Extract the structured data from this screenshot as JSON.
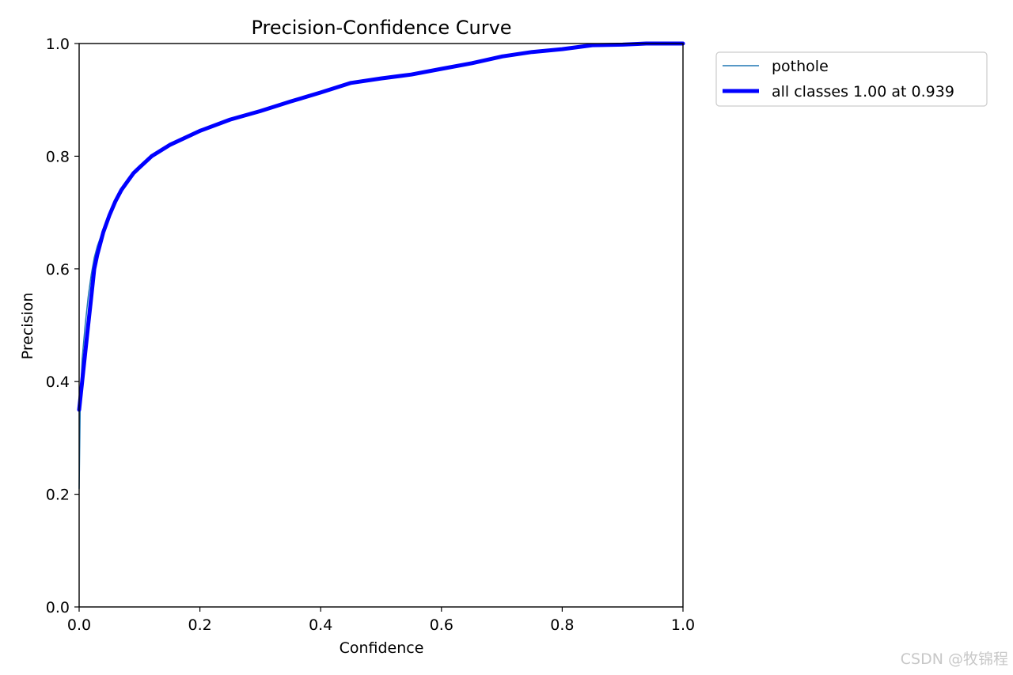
{
  "chart_data": {
    "type": "line",
    "title": "Precision-Confidence Curve",
    "xlabel": "Confidence",
    "ylabel": "Precision",
    "xlim": [
      0,
      1
    ],
    "ylim": [
      0,
      1
    ],
    "xticks": [
      "0.0",
      "0.2",
      "0.4",
      "0.6",
      "0.8",
      "1.0"
    ],
    "yticks": [
      "0.0",
      "0.2",
      "0.4",
      "0.6",
      "0.8",
      "1.0"
    ],
    "grid": false,
    "legend_position": "outside-top-right",
    "series": [
      {
        "name": "pothole",
        "color": "#1f77b4",
        "line": "thin",
        "x": [
          0.0,
          0.002,
          0.005,
          0.01,
          0.015,
          0.02,
          0.025,
          0.03,
          0.04,
          0.05,
          0.06,
          0.07,
          0.08,
          0.09,
          0.1,
          0.12,
          0.15,
          0.2,
          0.25,
          0.3,
          0.35,
          0.4,
          0.45,
          0.5,
          0.55,
          0.6,
          0.65,
          0.7,
          0.75,
          0.8,
          0.85,
          0.9,
          0.95,
          1.0
        ],
        "y": [
          0.21,
          0.37,
          0.44,
          0.5,
          0.55,
          0.59,
          0.62,
          0.64,
          0.67,
          0.7,
          0.72,
          0.74,
          0.755,
          0.77,
          0.78,
          0.8,
          0.82,
          0.845,
          0.865,
          0.88,
          0.897,
          0.913,
          0.93,
          0.938,
          0.945,
          0.955,
          0.965,
          0.977,
          0.985,
          0.99,
          0.997,
          0.998,
          1.0,
          1.0
        ]
      },
      {
        "name": "all classes 1.00 at 0.939",
        "color": "#0000ff",
        "line": "thick",
        "x": [
          0.0,
          0.005,
          0.01,
          0.015,
          0.02,
          0.025,
          0.03,
          0.04,
          0.05,
          0.06,
          0.07,
          0.08,
          0.09,
          0.1,
          0.12,
          0.15,
          0.2,
          0.25,
          0.3,
          0.35,
          0.4,
          0.45,
          0.5,
          0.55,
          0.6,
          0.65,
          0.7,
          0.75,
          0.8,
          0.85,
          0.9,
          0.939,
          1.0
        ],
        "y": [
          0.35,
          0.4,
          0.45,
          0.5,
          0.55,
          0.6,
          0.625,
          0.665,
          0.695,
          0.72,
          0.74,
          0.755,
          0.77,
          0.78,
          0.8,
          0.82,
          0.845,
          0.865,
          0.88,
          0.897,
          0.913,
          0.93,
          0.938,
          0.945,
          0.955,
          0.965,
          0.977,
          0.985,
          0.99,
          0.997,
          0.998,
          1.0,
          1.0
        ]
      }
    ]
  },
  "watermark": "CSDN @牧锦程"
}
